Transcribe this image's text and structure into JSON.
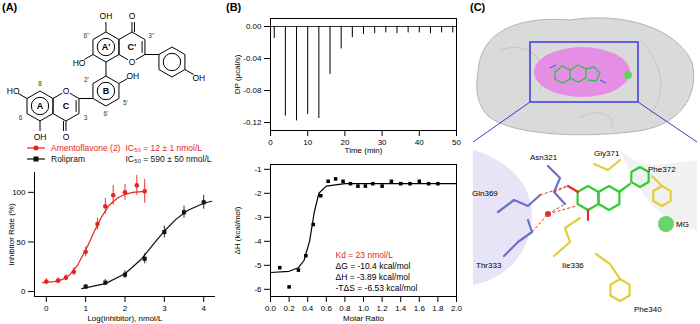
{
  "chart_data": [
    {
      "type": "scatter",
      "xlabel": "Log(inhibitor), nmol/L",
      "ylabel": "Inhibitor Rate (%)",
      "xlim": [
        -0.3,
        4.3
      ],
      "xticks": [
        0,
        1,
        2,
        3,
        4
      ],
      "ylim": [
        -5,
        120
      ],
      "yticks": [
        0,
        50,
        100
      ],
      "legend": "top",
      "series": [
        {
          "name": "Amentoflavone (2)",
          "color": "#e8231c",
          "marker": "circle",
          "annotation": "IC₅₀ = 12 ± 1 nmol/L",
          "x": [
            0,
            0.3,
            0.5,
            0.7,
            1.0,
            1.3,
            1.5,
            1.7,
            2.0,
            2.3,
            2.5
          ],
          "values": [
            10,
            11,
            14,
            20,
            40,
            68,
            86,
            97,
            100,
            107,
            101
          ],
          "errors": [
            3,
            3,
            3,
            4,
            5,
            6,
            8,
            10,
            8,
            10,
            12
          ],
          "fit": {
            "x": [
              -0.1,
              0.2,
              0.4,
              0.6,
              0.8,
              1.0,
              1.1,
              1.2,
              1.4,
              1.6,
              1.8,
              2.0,
              2.2,
              2.5
            ],
            "values": [
              9,
              10,
              12,
              17,
              27,
              42,
              50,
              59,
              75,
              87,
              94,
              98,
              100,
              101
            ]
          }
        },
        {
          "name": "Rolipram",
          "color": "#111111",
          "marker": "square",
          "annotation": "IC₅₀ = 590 ± 50 nmol/L",
          "x": [
            1.0,
            1.5,
            2.0,
            2.5,
            3.0,
            3.5,
            4.0
          ],
          "values": [
            5,
            9,
            17,
            33,
            60,
            80,
            90
          ],
          "errors": [
            2,
            3,
            4,
            5,
            6,
            6,
            7
          ],
          "fit": {
            "x": [
              0.9,
              1.5,
              2.0,
              2.4,
              2.77,
              3.0,
              3.3,
              3.6,
              4.0,
              4.2
            ],
            "values": [
              3,
              8,
              18,
              32,
              50,
              61,
              73,
              82,
              89,
              91
            ]
          }
        }
      ]
    },
    {
      "type": "spike",
      "xlabel": "Time (min)",
      "ylabel": "DP (μcal/s)",
      "xlim": [
        0,
        50
      ],
      "xticks": [
        0,
        10,
        20,
        30,
        40,
        50
      ],
      "ylim": [
        -0.13,
        0.01
      ],
      "yticks": [
        {
          "value": 0,
          "label": "0.00"
        },
        {
          "value": -0.04,
          "label": "-0.04"
        },
        {
          "value": -0.08,
          "label": "-0.08"
        },
        {
          "value": -0.12,
          "label": "-0.12"
        }
      ],
      "baseline": 0,
      "x": [
        1,
        4,
        7,
        10,
        13,
        16,
        19,
        22,
        25,
        28,
        31,
        34,
        37,
        40,
        43,
        46,
        49
      ],
      "values": [
        -0.015,
        -0.112,
        -0.118,
        -0.11,
        -0.115,
        -0.06,
        -0.028,
        -0.014,
        -0.01,
        -0.009,
        -0.008,
        -0.009,
        -0.008,
        -0.008,
        -0.009,
        -0.008,
        -0.008
      ],
      "color": "#000000"
    },
    {
      "type": "scatter",
      "xlabel": "Molar Ratio",
      "ylabel": "ΔH (kcal/mol)",
      "xlim": [
        0,
        2
      ],
      "xticks": [
        {
          "value": 0,
          "label": "0.0"
        },
        0.2,
        0.4,
        0.6,
        0.8,
        {
          "value": 1,
          "label": "1.0"
        },
        1.2,
        1.4,
        1.6,
        1.8,
        {
          "value": 2,
          "label": "2.0"
        }
      ],
      "ylim": [
        -6.3,
        -0.8
      ],
      "yticks": [
        -6,
        -5,
        -4,
        -3,
        -2,
        -1
      ],
      "color": "#000000",
      "marker": "square",
      "x": [
        0.1,
        0.2,
        0.3,
        0.38,
        0.46,
        0.54,
        0.62,
        0.7,
        0.78,
        0.86,
        0.94,
        1.02,
        1.1,
        1.2,
        1.3,
        1.4,
        1.5,
        1.6,
        1.7,
        1.8
      ],
      "values": [
        -5.1,
        -5.9,
        -5.2,
        -4.6,
        -3.3,
        -2.1,
        -1.5,
        -1.4,
        -1.5,
        -1.6,
        -1.7,
        -1.7,
        -1.6,
        -1.7,
        -1.5,
        -1.6,
        -1.6,
        -1.5,
        -1.6,
        -1.6
      ],
      "fit": {
        "x": [
          0,
          0.2,
          0.3,
          0.36,
          0.42,
          0.47,
          0.52,
          0.6,
          0.8,
          1.2,
          2.0
        ],
        "values": [
          -5.3,
          -5.25,
          -5.1,
          -4.8,
          -4.0,
          -2.8,
          -2.0,
          -1.7,
          -1.6,
          -1.6,
          -1.6
        ]
      },
      "annotations": [
        {
          "text": "Kd = 23 nmol/L",
          "color": "#e8231c"
        },
        {
          "text": "ΔG = -10.4 kcal/mol"
        },
        {
          "text": "ΔH = -3.89 kcal/mol"
        },
        {
          "text": "-TΔS = -6.53 kcal/mol"
        }
      ]
    }
  ],
  "figure": {
    "panel_labels": [
      "(A)",
      "(B)",
      "(C)"
    ],
    "structure": {
      "ring_labels": [
        "A",
        "C",
        "B",
        "A'",
        "C'"
      ],
      "atom_labels": [
        "HO",
        "OH",
        "O",
        "O",
        "OH",
        "OH",
        "HO",
        "O",
        "O",
        "OH"
      ],
      "numbering": [
        "8",
        "6",
        "3",
        "2'",
        "5'",
        "6'",
        "6''",
        "3''"
      ]
    },
    "protein_view": {
      "residues": [
        "Asn321",
        "Gly371",
        "Phe372",
        "Gln369",
        "Thr333",
        "Ile336",
        "Phe340"
      ],
      "metal": "MG"
    }
  }
}
